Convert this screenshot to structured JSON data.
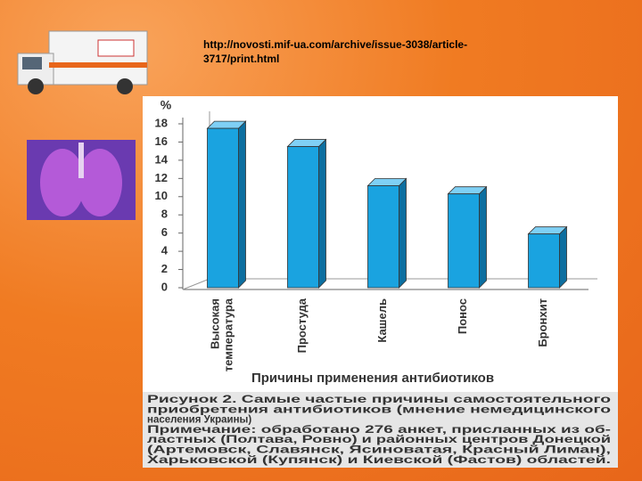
{
  "url_lines": [
    "http://novosti.mif-ua.com/archive/issue-3038/article-",
    "3717/print.html"
  ],
  "chart_data": {
    "type": "bar",
    "y_label": "%",
    "x_label": "Причины применения антибиотиков",
    "categories": [
      "Высокая температура",
      "Простуда",
      "Кашель",
      "Понос",
      "Бронхит"
    ],
    "values": [
      17.5,
      15.5,
      11.2,
      10.3,
      5.9
    ],
    "color": "#1aa3e0",
    "ylim": [
      0,
      18
    ],
    "yticks": [
      0,
      2,
      4,
      6,
      8,
      10,
      12,
      14,
      16,
      18
    ],
    "grid": false,
    "caption_lines": [
      "Рисунок 2. Самые частые причины самостоятельного",
      "приобретения антибиотиков (мнение немедицинского",
      "населения Украины)",
      "Примечание: обработано 276 анкет, присланных из об-",
      "ластных (Полтава, Ровно) и районных центров Донецкой",
      "(Артемовск, Славянск, Ясиноватая, Красный Лиман),",
      "Харьковской (Купянск) и Киевской (Фастов) областей."
    ]
  }
}
